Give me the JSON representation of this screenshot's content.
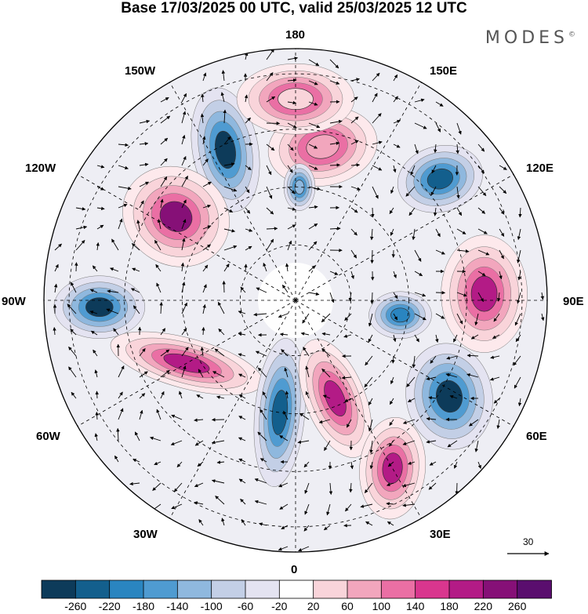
{
  "header": {
    "title": "Base 17/03/2025 00 UTC, valid 25/03/2025 12 UTC",
    "brand": "MODES",
    "brand_mark": "©"
  },
  "map": {
    "projection": "north polar stereographic",
    "longitude_labels": {
      "top": "180",
      "top_right": "150E",
      "upper_right": "120E",
      "right": "90E",
      "lower_right": "60E",
      "bottom_right": "30E",
      "bottom": "0",
      "bottom_left": "30W",
      "lower_left": "60W",
      "left": "90W",
      "upper_left": "120W",
      "top_left": "150W"
    },
    "vector_reference": "30"
  },
  "colorbar": {
    "labels": [
      "-260",
      "-220",
      "-180",
      "-140",
      "-100",
      "-60",
      "-20",
      "20",
      "60",
      "100",
      "140",
      "180",
      "220",
      "260"
    ],
    "colors": [
      "#0d3b5a",
      "#135f8d",
      "#2a85c0",
      "#4f9bd1",
      "#8fb8de",
      "#c3cfe6",
      "#e4e3f1",
      "#ffffff",
      "#f9d4da",
      "#f2a6bd",
      "#ea6fa4",
      "#d9368e",
      "#b31b86",
      "#861077",
      "#5a0e6e"
    ]
  },
  "anomalies": [
    {
      "kind": "neg",
      "lon": -155,
      "r": 0.66,
      "rx": 42,
      "ry": 80,
      "rot": -10,
      "core": "#0d3b5a"
    },
    {
      "kind": "pos",
      "lon": -125,
      "r": 0.58,
      "rx": 70,
      "ry": 62,
      "rot": 30,
      "core": "#861077"
    },
    {
      "kind": "neg",
      "lon": -88,
      "r": 0.78,
      "rx": 58,
      "ry": 40,
      "rot": 0,
      "core": "#0d3b5a"
    },
    {
      "kind": "pos",
      "lon": -60,
      "r": 0.5,
      "rx": 100,
      "ry": 32,
      "rot": 15,
      "core": "#b31b86"
    },
    {
      "kind": "neg",
      "lon": -8,
      "r": 0.45,
      "rx": 32,
      "ry": 95,
      "rot": 5,
      "core": "#135f8d"
    },
    {
      "kind": "pos",
      "lon": 22,
      "r": 0.42,
      "rx": 38,
      "ry": 80,
      "rot": -22,
      "core": "#b31b86"
    },
    {
      "kind": "pos",
      "lon": 30,
      "r": 0.77,
      "rx": 42,
      "ry": 65,
      "rot": 5,
      "core": "#b31b86"
    },
    {
      "kind": "neg",
      "lon": 58,
      "r": 0.72,
      "rx": 55,
      "ry": 68,
      "rot": -10,
      "core": "#0d3b5a"
    },
    {
      "kind": "pos",
      "lon": 92,
      "r": 0.75,
      "rx": 55,
      "ry": 75,
      "rot": 0,
      "core": "#b31b86"
    },
    {
      "kind": "neg",
      "lon": 82,
      "r": 0.42,
      "rx": 40,
      "ry": 30,
      "rot": 0,
      "core": "#2a85c0"
    },
    {
      "kind": "neg",
      "lon": 130,
      "r": 0.75,
      "rx": 55,
      "ry": 42,
      "rot": -15,
      "core": "#135f8d"
    },
    {
      "kind": "pos",
      "lon": 170,
      "r": 0.62,
      "rx": 70,
      "ry": 50,
      "rot": -10,
      "core": "#f2a6bd"
    },
    {
      "kind": "pos",
      "lon": -180,
      "r": 0.8,
      "rx": 75,
      "ry": 45,
      "rot": 0,
      "core": "#f9d4da"
    },
    {
      "kind": "neg",
      "lon": 178,
      "r": 0.45,
      "rx": 20,
      "ry": 30,
      "rot": 0,
      "core": "#8fb8de"
    }
  ]
}
